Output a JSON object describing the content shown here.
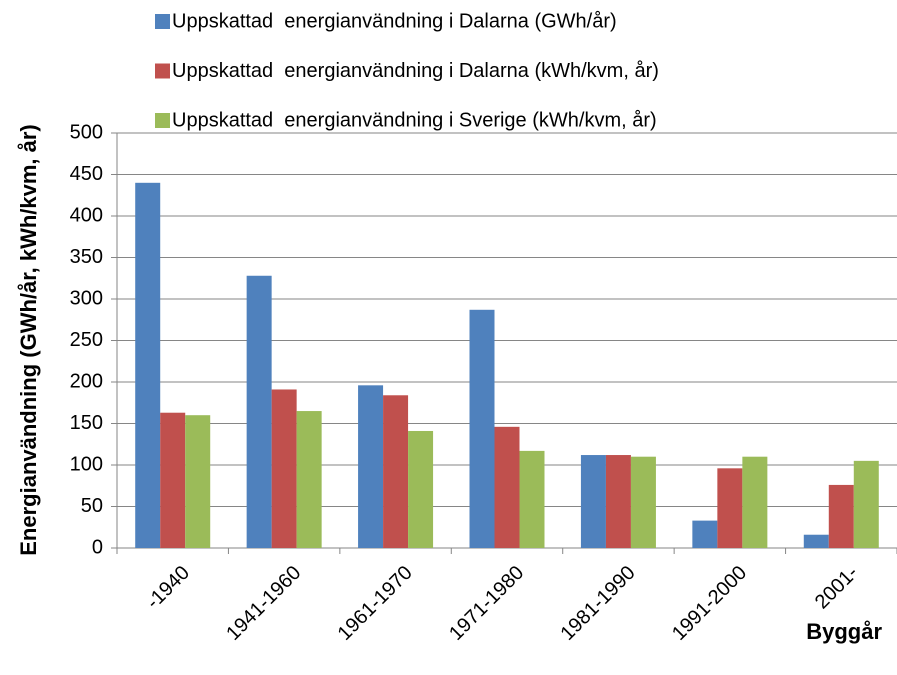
{
  "chart_data": {
    "type": "bar",
    "categories": [
      "-1940",
      "1941-1960",
      "1961-1970",
      "1971-1980",
      "1981-1990",
      "1991-2000",
      "2001-"
    ],
    "series": [
      {
        "name": "Uppskattad  energianvändning i Dalarna (GWh/år)",
        "color": "#4f81bd",
        "values": [
          440,
          328,
          196,
          287,
          112,
          33,
          16
        ]
      },
      {
        "name": "Uppskattad  energianvändning i Dalarna (kWh/kvm, år)",
        "color": "#c0504d",
        "values": [
          163,
          191,
          184,
          146,
          112,
          96,
          76
        ]
      },
      {
        "name": "Uppskattad  energianvändning i Sverige (kWh/kvm, år)",
        "color": "#9bbb59",
        "values": [
          160,
          165,
          141,
          117,
          110,
          110,
          105
        ]
      }
    ],
    "y_label": "Energianvändning (GWh/år, kWh/kvm, år)",
    "x_label": "Byggår",
    "ylim": [
      0,
      500
    ],
    "yticks": [
      0,
      50,
      100,
      150,
      200,
      250,
      300,
      350,
      400,
      450,
      500
    ],
    "grid": true
  }
}
